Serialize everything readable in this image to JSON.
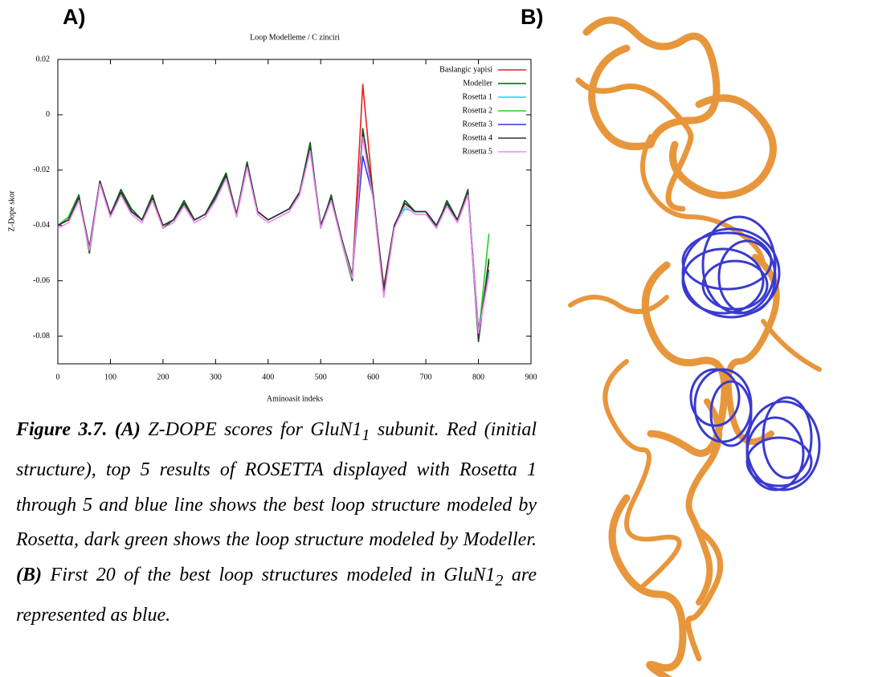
{
  "labels": {
    "a": "A)",
    "b": "B)"
  },
  "chart_data": {
    "type": "line",
    "title": "Loop Modelleme / C zinciri",
    "x_label": "Aminoasit indeks",
    "y_label": "Z-Dope skor",
    "x": [
      0,
      20,
      40,
      60,
      80,
      100,
      120,
      140,
      160,
      180,
      200,
      220,
      240,
      260,
      280,
      300,
      320,
      340,
      360,
      380,
      400,
      420,
      440,
      460,
      480,
      500,
      520,
      540,
      560,
      580,
      600,
      620,
      640,
      660,
      680,
      700,
      720,
      740,
      760,
      780,
      800,
      820
    ],
    "xlim": [
      0,
      900
    ],
    "xticks": [
      0,
      100,
      200,
      300,
      400,
      500,
      600,
      700,
      800,
      900
    ],
    "ylim": [
      -0.09,
      0.02
    ],
    "yticks": [
      0.02,
      0,
      -0.02,
      -0.04,
      -0.06,
      -0.08
    ],
    "legend": "top-right",
    "series": [
      {
        "name": "Baslangic yapisi",
        "color": "#e8201c",
        "values": [
          -0.04,
          -0.038,
          -0.03,
          -0.048,
          -0.024,
          -0.036,
          -0.028,
          -0.035,
          -0.038,
          -0.03,
          -0.04,
          -0.038,
          -0.032,
          -0.038,
          -0.036,
          -0.03,
          -0.022,
          -0.036,
          -0.018,
          -0.035,
          -0.038,
          -0.036,
          -0.034,
          -0.028,
          -0.012,
          -0.04,
          -0.03,
          -0.045,
          -0.059,
          0.011,
          -0.03,
          -0.062,
          -0.04,
          -0.032,
          -0.035,
          -0.035,
          -0.04,
          -0.032,
          -0.038,
          -0.028,
          -0.078,
          -0.056
        ]
      },
      {
        "name": "Modeller",
        "color": "#006400",
        "values": [
          -0.04,
          -0.037,
          -0.029,
          -0.05,
          -0.024,
          -0.036,
          -0.027,
          -0.034,
          -0.038,
          -0.029,
          -0.041,
          -0.038,
          -0.031,
          -0.038,
          -0.036,
          -0.029,
          -0.021,
          -0.036,
          -0.017,
          -0.035,
          -0.038,
          -0.036,
          -0.034,
          -0.028,
          -0.01,
          -0.041,
          -0.029,
          -0.046,
          -0.06,
          -0.005,
          -0.029,
          -0.064,
          -0.041,
          -0.031,
          -0.035,
          -0.035,
          -0.041,
          -0.031,
          -0.038,
          -0.027,
          -0.082,
          -0.052
        ]
      },
      {
        "name": "Rosetta 1",
        "color": "#00e0e0",
        "values": [
          -0.04,
          -0.038,
          -0.03,
          -0.048,
          -0.024,
          -0.036,
          -0.028,
          -0.035,
          -0.038,
          -0.03,
          -0.04,
          -0.038,
          -0.032,
          -0.038,
          -0.036,
          -0.03,
          -0.022,
          -0.036,
          -0.018,
          -0.035,
          -0.038,
          -0.036,
          -0.034,
          -0.028,
          -0.012,
          -0.04,
          -0.03,
          -0.045,
          -0.058,
          -0.007,
          -0.03,
          -0.063,
          -0.04,
          -0.034,
          -0.035,
          -0.035,
          -0.04,
          -0.032,
          -0.038,
          -0.028,
          -0.079,
          -0.057
        ]
      },
      {
        "name": "Rosetta 2",
        "color": "#22d022",
        "values": [
          -0.04,
          -0.037,
          -0.03,
          -0.048,
          -0.024,
          -0.036,
          -0.028,
          -0.035,
          -0.038,
          -0.03,
          -0.04,
          -0.038,
          -0.032,
          -0.038,
          -0.036,
          -0.03,
          -0.022,
          -0.036,
          -0.018,
          -0.035,
          -0.038,
          -0.036,
          -0.034,
          -0.028,
          -0.012,
          -0.04,
          -0.03,
          -0.045,
          -0.058,
          -0.006,
          -0.03,
          -0.063,
          -0.04,
          -0.032,
          -0.035,
          -0.035,
          -0.04,
          -0.032,
          -0.038,
          -0.028,
          -0.08,
          -0.043
        ]
      },
      {
        "name": "Rosetta 3",
        "color": "#3535dd",
        "values": [
          -0.04,
          -0.038,
          -0.03,
          -0.048,
          -0.024,
          -0.036,
          -0.028,
          -0.035,
          -0.038,
          -0.03,
          -0.04,
          -0.038,
          -0.032,
          -0.038,
          -0.036,
          -0.03,
          -0.022,
          -0.036,
          -0.018,
          -0.035,
          -0.038,
          -0.036,
          -0.034,
          -0.028,
          -0.012,
          -0.04,
          -0.03,
          -0.045,
          -0.058,
          -0.015,
          -0.03,
          -0.064,
          -0.04,
          -0.032,
          -0.035,
          -0.035,
          -0.04,
          -0.032,
          -0.038,
          -0.028,
          -0.078,
          -0.058
        ]
      },
      {
        "name": "Rosetta 4",
        "color": "#333333",
        "values": [
          -0.04,
          -0.038,
          -0.03,
          -0.048,
          -0.024,
          -0.036,
          -0.028,
          -0.035,
          -0.038,
          -0.03,
          -0.04,
          -0.038,
          -0.032,
          -0.038,
          -0.036,
          -0.03,
          -0.022,
          -0.036,
          -0.018,
          -0.035,
          -0.038,
          -0.036,
          -0.034,
          -0.028,
          -0.012,
          -0.04,
          -0.03,
          -0.045,
          -0.058,
          -0.006,
          -0.03,
          -0.063,
          -0.04,
          -0.032,
          -0.035,
          -0.035,
          -0.04,
          -0.032,
          -0.038,
          -0.028,
          -0.081,
          -0.053
        ]
      },
      {
        "name": "Rosetta 5",
        "color": "#ee88ee",
        "values": [
          -0.041,
          -0.039,
          -0.031,
          -0.049,
          -0.025,
          -0.037,
          -0.029,
          -0.036,
          -0.039,
          -0.031,
          -0.041,
          -0.039,
          -0.033,
          -0.039,
          -0.037,
          -0.031,
          -0.023,
          -0.037,
          -0.019,
          -0.036,
          -0.039,
          -0.037,
          -0.035,
          -0.029,
          -0.013,
          -0.041,
          -0.031,
          -0.046,
          -0.059,
          -0.008,
          -0.031,
          -0.066,
          -0.041,
          -0.033,
          -0.036,
          -0.036,
          -0.041,
          -0.033,
          -0.039,
          -0.029,
          -0.079,
          -0.058
        ]
      }
    ]
  },
  "caption": {
    "label": "Figure 3.7.",
    "a": "(A)",
    "text1": "Z-DOPE scores for GluN1",
    "sub1": "1",
    "text2": "subunit. Red (initial structure), top 5 results of ROSETTA displayed with Rosetta 1 through 5 and blue line shows the best loop structure modeled by Rosetta, dark green shows the loop structure modeled by Modeller.",
    "b": "(B)",
    "text3": "First 20 of the best loop structures modeled in GluN1",
    "sub2": "2",
    "text4": "are represented as blue."
  }
}
